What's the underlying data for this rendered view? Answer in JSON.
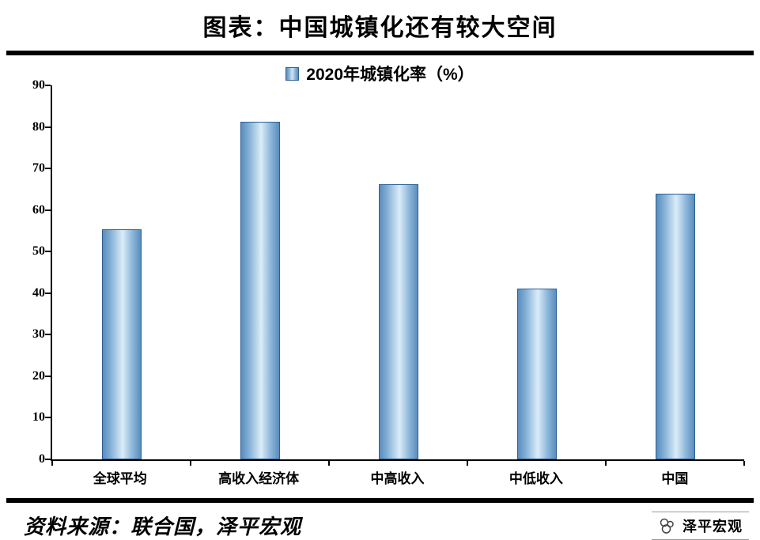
{
  "title": "图表：中国城镇化还有较大空间",
  "footer": {
    "source": "资料来源：联合国，泽平宏观",
    "watermark": "泽平宏观"
  },
  "chart_data": {
    "type": "bar",
    "title": "图表：中国城镇化还有较大空间",
    "legend": "2020年城镇化率（%）",
    "categories": [
      "全球平均",
      "高收入经济体",
      "中高收入",
      "中低收入",
      "中国"
    ],
    "values": [
      55.3,
      81.3,
      66.2,
      41.1,
      63.9
    ],
    "xlabel": "",
    "ylabel": "",
    "ylim": [
      0,
      90
    ],
    "ytick_step": 10,
    "grid": false,
    "legend_position": "top-center",
    "colors": {
      "bar_fill_edge": "#5a8dbd",
      "bar_fill_center": "#dcecf8",
      "bar_border": "#2e6095",
      "axis": "#000000",
      "rule": "#000000"
    }
  }
}
